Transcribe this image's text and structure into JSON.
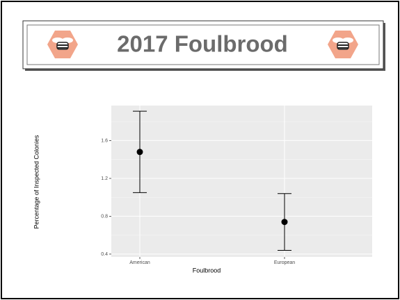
{
  "header": {
    "title": "2017 Foulbrood"
  },
  "chart_data": {
    "type": "errorbar",
    "categories": [
      "American",
      "European"
    ],
    "values": [
      1.48,
      0.74
    ],
    "errors": [
      0.43,
      0.3
    ],
    "color": "#000000",
    "xlabel": "Foulbrood",
    "ylabel": "Percentage of Inspected Colonies",
    "ylim": [
      0.37,
      1.97
    ],
    "yticks": [
      0.4,
      0.8,
      1.2,
      1.6
    ],
    "minor_yticks": [
      0.6,
      1.0,
      1.4,
      1.8
    ],
    "grid": true
  }
}
